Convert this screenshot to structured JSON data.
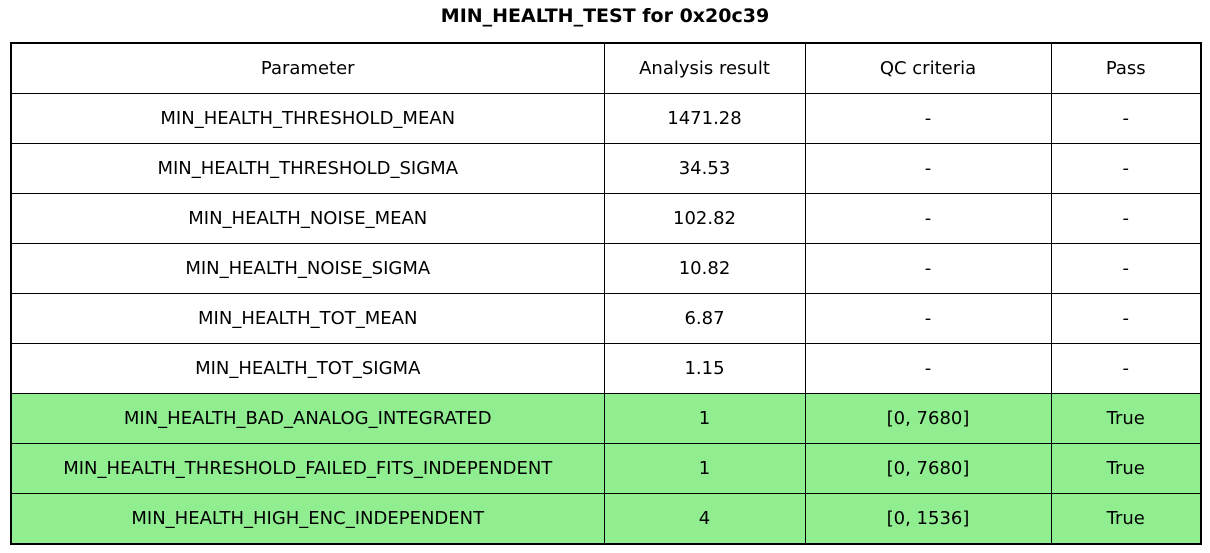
{
  "title": "MIN_HEALTH_TEST for 0x20c39",
  "colors": {
    "pass_green": "#90ee90",
    "border": "#000000",
    "background": "#ffffff",
    "text": "#000000"
  },
  "chart_data": {
    "type": "table",
    "title": "MIN_HEALTH_TEST for 0x20c39",
    "columns": [
      "Parameter",
      "Analysis result",
      "QC criteria",
      "Pass"
    ],
    "rows": [
      {
        "cells": [
          "MIN_HEALTH_THRESHOLD_MEAN",
          "1471.28",
          "-",
          "-"
        ],
        "highlight": false
      },
      {
        "cells": [
          "MIN_HEALTH_THRESHOLD_SIGMA",
          "34.53",
          "-",
          "-"
        ],
        "highlight": false
      },
      {
        "cells": [
          "MIN_HEALTH_NOISE_MEAN",
          "102.82",
          "-",
          "-"
        ],
        "highlight": false
      },
      {
        "cells": [
          "MIN_HEALTH_NOISE_SIGMA",
          "10.82",
          "-",
          "-"
        ],
        "highlight": false
      },
      {
        "cells": [
          "MIN_HEALTH_TOT_MEAN",
          "6.87",
          "-",
          "-"
        ],
        "highlight": false
      },
      {
        "cells": [
          "MIN_HEALTH_TOT_SIGMA",
          "1.15",
          "-",
          "-"
        ],
        "highlight": false
      },
      {
        "cells": [
          "MIN_HEALTH_BAD_ANALOG_INTEGRATED",
          "1",
          "[0, 7680]",
          "True"
        ],
        "highlight": true
      },
      {
        "cells": [
          "MIN_HEALTH_THRESHOLD_FAILED_FITS_INDEPENDENT",
          "1",
          "[0, 7680]",
          "True"
        ],
        "highlight": true
      },
      {
        "cells": [
          "MIN_HEALTH_HIGH_ENC_INDEPENDENT",
          "4",
          "[0, 1536]",
          "True"
        ],
        "highlight": true
      }
    ]
  }
}
